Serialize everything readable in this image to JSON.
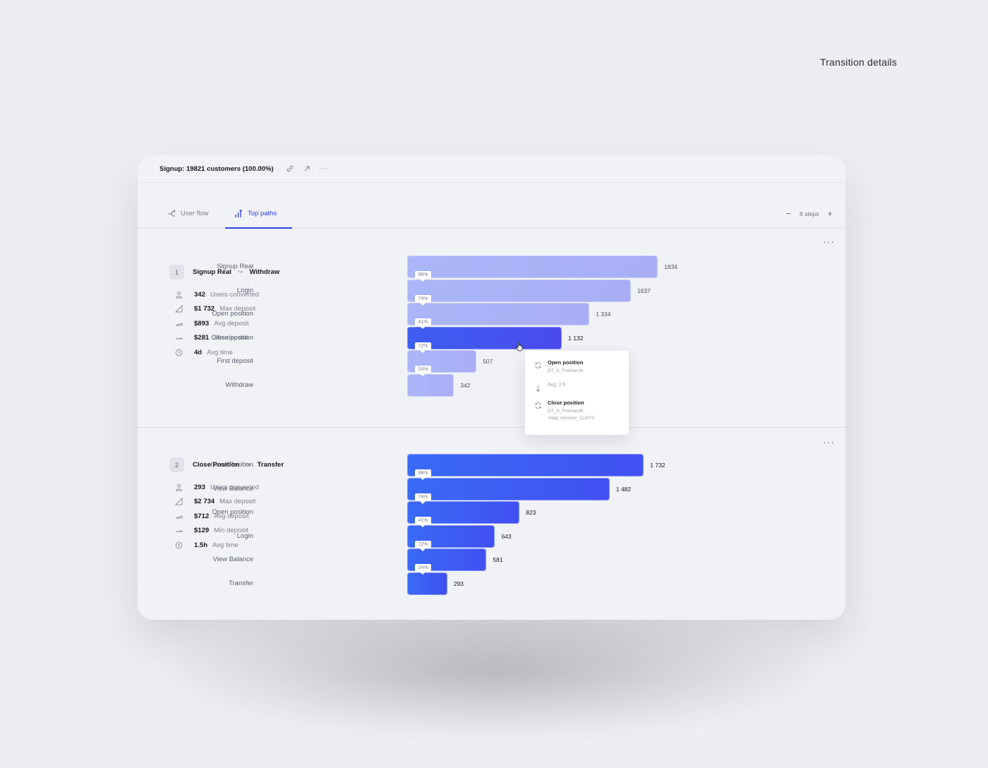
{
  "page": {
    "heading": "Transition details"
  },
  "header": {
    "title": "Signup: 19821 customers (100.00%)"
  },
  "tabs": [
    {
      "label": "User flow"
    },
    {
      "label": "Top paths"
    }
  ],
  "steps": {
    "label": "6 steps",
    "minus": "−",
    "plus": "+"
  },
  "more_label": "···",
  "paths": [
    {
      "index": "1",
      "from": "Signup Real",
      "to": "Withdraw",
      "arrow": "↪",
      "stats": [
        {
          "value": "342",
          "label": "Users converted",
          "icon": "user-icon"
        },
        {
          "value": "$1 732",
          "label": "Max deposit",
          "icon": "max-icon"
        },
        {
          "value": "$893",
          "label": "Avg deposit",
          "icon": "avg-icon"
        },
        {
          "value": "$281",
          "label": "Min deposit",
          "icon": "min-icon"
        },
        {
          "value": "4d",
          "label": "Avg time",
          "icon": "clock-icon"
        }
      ]
    },
    {
      "index": "2",
      "from": "Close Position",
      "to": "Transfer",
      "arrow": "↪",
      "stats": [
        {
          "value": "293",
          "label": "Users converted",
          "icon": "user-icon"
        },
        {
          "value": "$2 734",
          "label": "Max deposit",
          "icon": "max-icon"
        },
        {
          "value": "$712",
          "label": "Avg deposit",
          "icon": "avg-icon"
        },
        {
          "value": "$129",
          "label": "Min deposit",
          "icon": "min-icon"
        },
        {
          "value": "1.5h",
          "label": "Avg time",
          "icon": "clock-icon"
        }
      ]
    }
  ],
  "chart_data": [
    {
      "type": "bar",
      "orientation": "horizontal",
      "categories": [
        "Signup Real",
        "Login",
        "Open position",
        "Close position",
        "First deposit",
        "Withdraw"
      ],
      "values": [
        1834,
        1637,
        1334,
        1132,
        507,
        342
      ],
      "value_labels": [
        "1834",
        "1637",
        "1 334",
        "1 132",
        "507",
        "342"
      ],
      "conversion_labels": [
        "98%",
        "74%",
        "41%",
        "72%",
        "24%"
      ],
      "highlighted_index": 3,
      "colors": {
        "base": "#a9b2f6",
        "highlight": "#4457ef"
      }
    },
    {
      "type": "bar",
      "orientation": "horizontal",
      "categories": [
        "Close Position",
        "View Balance",
        "Open position",
        "Login",
        "View Balance",
        "Transfer"
      ],
      "values": [
        1732,
        1482,
        823,
        643,
        581,
        293
      ],
      "value_labels": [
        "1 732",
        "1 482",
        "823",
        "643",
        "581",
        "293"
      ],
      "conversion_labels": [
        "98%",
        "74%",
        "41%",
        "72%",
        "24%"
      ],
      "colors": {
        "base": "#3f5cf4"
      }
    }
  ],
  "tooltip": {
    "from_title": "Open position",
    "from_sub": "DT_S_FintimeUK",
    "avg": "Avg: 2 h",
    "to_title": "Close position",
    "to_sub1": "DT_S_FintimeUK",
    "to_sub2": "Vitaly Vorobev_113070"
  }
}
